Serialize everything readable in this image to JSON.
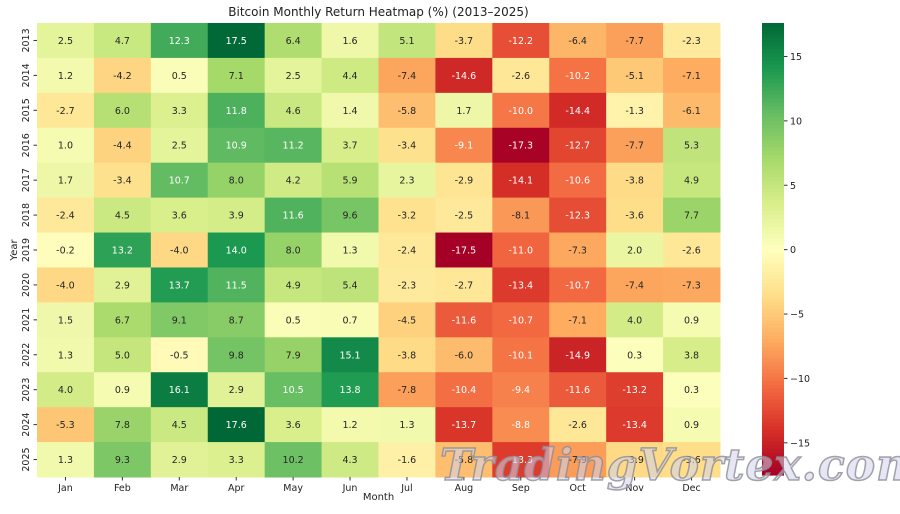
{
  "chart_data": {
    "type": "heatmap",
    "title": "Bitcoin Monthly Return Heatmap (%) (2013–2025)",
    "xlabel": "Month",
    "ylabel": "Year",
    "columns": [
      "Jan",
      "Feb",
      "Mar",
      "Apr",
      "May",
      "Jun",
      "Jul",
      "Aug",
      "Sep",
      "Oct",
      "Nov",
      "Dec"
    ],
    "rows": [
      "2013",
      "2014",
      "2015",
      "2016",
      "2017",
      "2018",
      "2019",
      "2020",
      "2021",
      "2022",
      "2023",
      "2024",
      "2025"
    ],
    "values": [
      [
        2.5,
        4.7,
        12.3,
        17.5,
        6.4,
        1.6,
        5.1,
        -3.7,
        -12.2,
        -6.4,
        -7.7,
        -2.3
      ],
      [
        1.2,
        -4.2,
        0.5,
        7.1,
        2.5,
        4.4,
        -7.4,
        -14.6,
        -2.6,
        -10.2,
        -5.1,
        -7.1
      ],
      [
        -2.7,
        6.0,
        3.3,
        11.8,
        4.6,
        1.4,
        -5.8,
        1.7,
        -10.0,
        -14.4,
        -1.3,
        -6.1
      ],
      [
        1.0,
        -4.4,
        2.5,
        10.9,
        11.2,
        3.7,
        -3.4,
        -9.1,
        -17.3,
        -12.7,
        -7.7,
        5.3
      ],
      [
        1.7,
        -3.4,
        10.7,
        8.0,
        4.2,
        5.9,
        2.3,
        -2.9,
        -14.1,
        -10.6,
        -3.8,
        4.9
      ],
      [
        -2.4,
        4.5,
        3.6,
        3.9,
        11.6,
        9.6,
        -3.2,
        -2.5,
        -8.1,
        -12.3,
        -3.6,
        7.7
      ],
      [
        -0.2,
        13.2,
        -4.0,
        14.0,
        8.0,
        1.3,
        -2.4,
        -17.5,
        -11.0,
        -7.3,
        2.0,
        -2.6
      ],
      [
        -4.0,
        2.9,
        13.7,
        11.5,
        4.9,
        5.4,
        -2.3,
        -2.7,
        -13.4,
        -10.7,
        -7.4,
        -7.3
      ],
      [
        1.5,
        6.7,
        9.1,
        8.7,
        0.5,
        0.7,
        -4.5,
        -11.6,
        -10.7,
        -7.1,
        4.0,
        0.9
      ],
      [
        1.3,
        5.0,
        -0.5,
        9.8,
        7.9,
        15.1,
        -3.8,
        -6.0,
        -10.1,
        -14.9,
        0.3,
        3.8
      ],
      [
        4.0,
        0.9,
        16.1,
        2.9,
        10.5,
        13.8,
        -7.8,
        -10.4,
        -9.4,
        -11.6,
        -13.2,
        0.3
      ],
      [
        -5.3,
        7.8,
        4.5,
        17.6,
        3.6,
        1.2,
        1.3,
        -13.7,
        -8.8,
        -2.6,
        -13.4,
        0.9
      ],
      [
        1.3,
        9.3,
        2.9,
        3.3,
        10.2,
        4.3,
        -1.6,
        -5.8,
        -13.3,
        -7.9,
        -3.9,
        -3.6
      ]
    ],
    "colormap": "RdYlGn",
    "vmin": -17.5,
    "vmax": 17.6,
    "colorbar_ticks": [
      -15,
      -10,
      -5,
      0,
      5,
      10,
      15
    ],
    "colorbar_tick_labels": [
      "−15",
      "−10",
      "−5",
      "0",
      "5",
      "10",
      "15"
    ],
    "colormap_stops": [
      "#a50026",
      "#d73027",
      "#f46d43",
      "#fdae61",
      "#fee08b",
      "#ffffbf",
      "#d9ef8b",
      "#a6d96a",
      "#66bd63",
      "#1a9850",
      "#006837"
    ],
    "annotations": "values shown in each cell, 1 decimal"
  },
  "watermark": "TradingVortex.com"
}
